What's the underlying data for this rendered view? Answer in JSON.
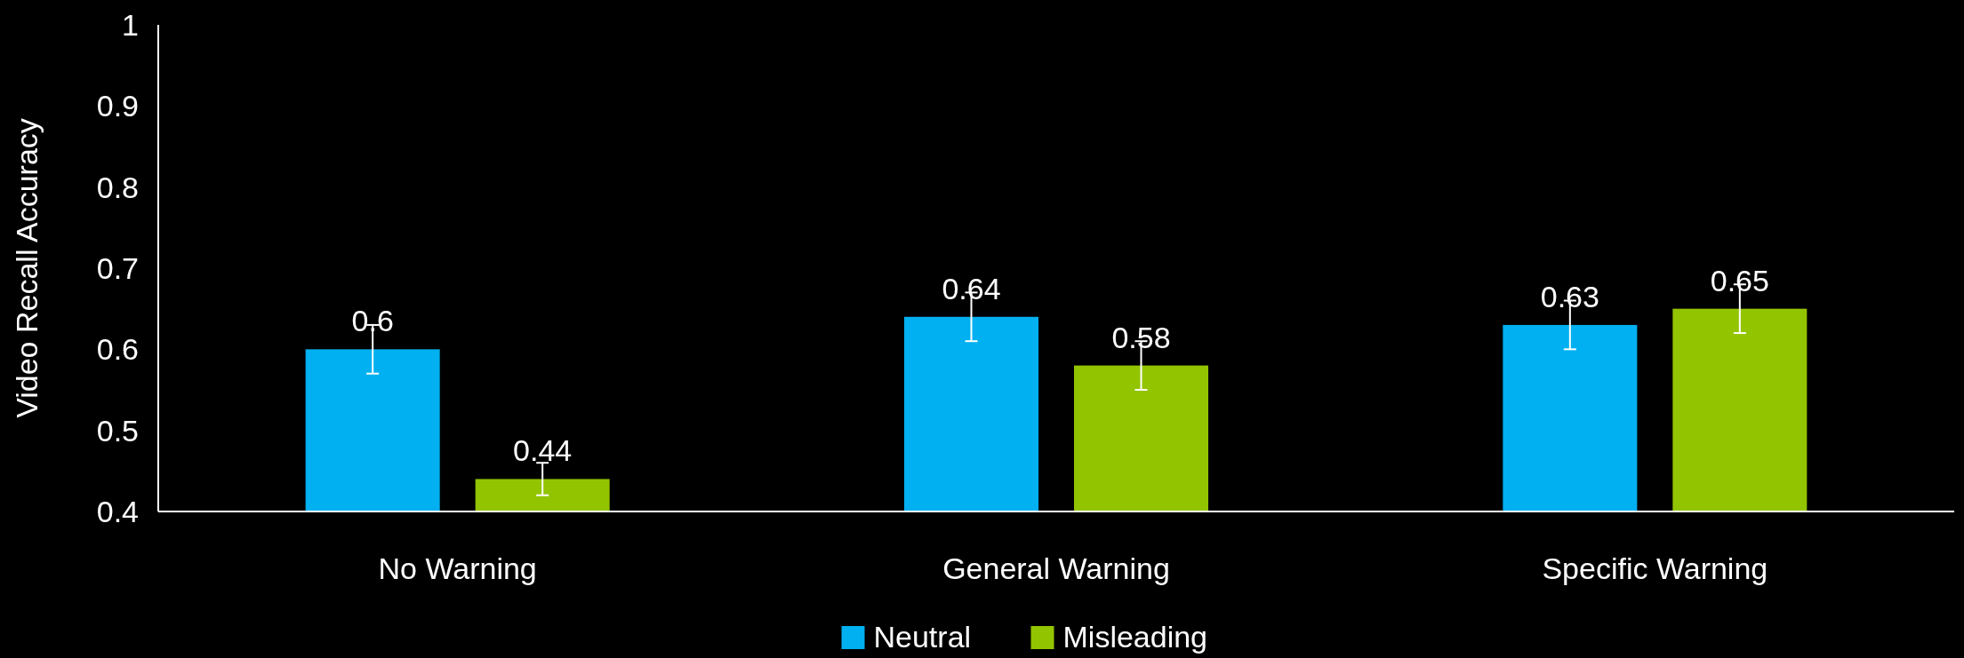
{
  "chart_data": {
    "type": "bar",
    "ylabel": "Video Recall Accuracy",
    "categories": [
      "No Warning",
      "General Warning",
      "Specific Warning"
    ],
    "series": [
      {
        "name": "Neutral",
        "color": "#00b0f0",
        "values": [
          0.6,
          0.64,
          0.63
        ],
        "errors": [
          0.03,
          0.03,
          0.03
        ]
      },
      {
        "name": "Misleading",
        "color": "#92c400",
        "values": [
          0.44,
          0.58,
          0.65
        ],
        "errors": [
          0.02,
          0.03,
          0.03
        ]
      }
    ],
    "ylim": [
      0.4,
      1
    ],
    "yticks": [
      0.4,
      0.5,
      0.6,
      0.7,
      0.8,
      0.9,
      1
    ],
    "grid": false,
    "legend": "bottom",
    "data_labels": true
  }
}
